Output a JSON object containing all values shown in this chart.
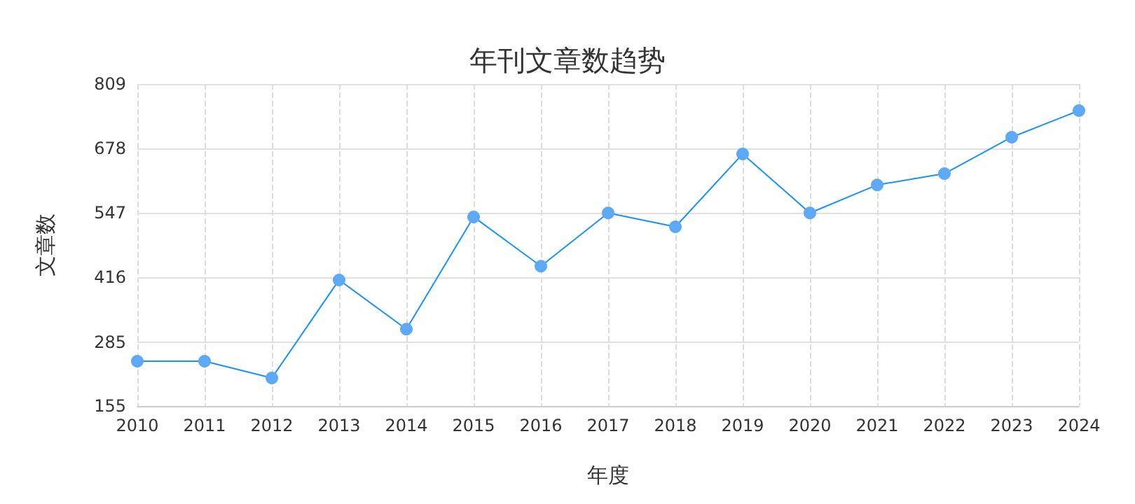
{
  "chart_data": {
    "type": "line",
    "title": "年刊文章数趋势",
    "xlabel": "年度",
    "ylabel": "文章数",
    "categories": [
      "2010",
      "2011",
      "2012",
      "2013",
      "2014",
      "2015",
      "2016",
      "2017",
      "2018",
      "2019",
      "2020",
      "2021",
      "2022",
      "2023",
      "2024"
    ],
    "series": [
      {
        "color": "#1890ff",
        "values": [
          246,
          246,
          212,
          411,
          311,
          539,
          439,
          547,
          519,
          667,
          547,
          604,
          627,
          701,
          755
        ]
      }
    ],
    "ylim": [
      155,
      809
    ],
    "yticks": [
      155,
      285,
      416,
      547,
      678,
      809
    ],
    "grid": true,
    "marker": "circle",
    "line_style": "solid"
  }
}
